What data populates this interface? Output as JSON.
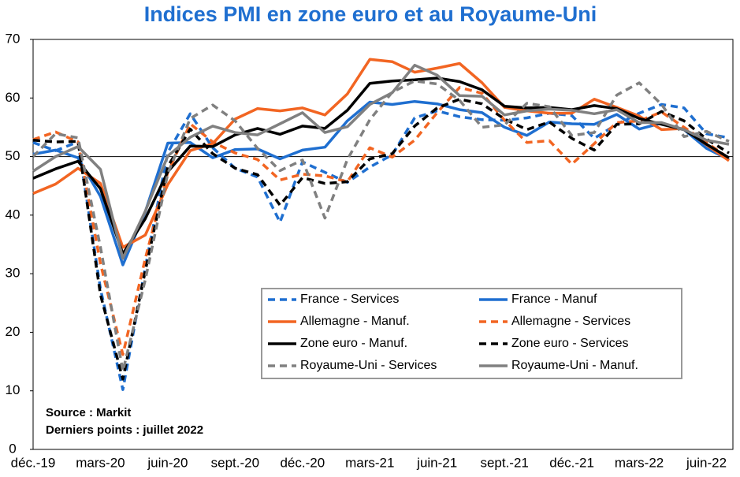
{
  "chart_data": {
    "type": "line",
    "title": "Indices PMI en zone euro et au Royaume-Uni",
    "annotations": [
      "Source : Markit",
      "Derniers points : juillet 2022"
    ],
    "categories": [
      "déc.-19",
      null,
      null,
      "mars-20",
      null,
      null,
      "juin-20",
      null,
      null,
      "sept.-20",
      null,
      null,
      "déc.-20",
      null,
      null,
      "mars-21",
      null,
      null,
      "juin-21",
      null,
      null,
      "sept.-21",
      null,
      null,
      "déc.-21",
      null,
      null,
      "mars-22",
      null,
      null,
      "juin-22",
      null
    ],
    "ylim": [
      0,
      70
    ],
    "yticks": [
      0,
      10,
      20,
      30,
      40,
      50,
      60,
      70
    ],
    "reference_line": 50,
    "series": [
      {
        "name": "France - Services",
        "color": "#1f6fd0",
        "dashed": true,
        "values": [
          52.4,
          51.0,
          52.5,
          27.4,
          10.2,
          31.1,
          50.7,
          57.3,
          51.5,
          48.0,
          46.5,
          38.8,
          49.1,
          47.3,
          45.6,
          48.2,
          50.3,
          56.6,
          57.8,
          56.8,
          56.3,
          56.2,
          56.6,
          57.4,
          57.0,
          53.1,
          55.5,
          57.4,
          58.9,
          58.3,
          53.9,
          53.2
        ]
      },
      {
        "name": "France - Manuf",
        "color": "#1f6fd0",
        "dashed": false,
        "values": [
          50.4,
          51.1,
          49.8,
          43.2,
          31.5,
          40.6,
          52.3,
          52.4,
          49.8,
          51.2,
          51.3,
          49.6,
          51.1,
          51.6,
          56.1,
          59.3,
          58.9,
          59.4,
          59.0,
          58.0,
          57.5,
          55.0,
          53.6,
          55.9,
          55.6,
          55.5,
          57.2,
          54.7,
          55.7,
          54.6,
          51.4,
          49.5
        ]
      },
      {
        "name": "Allemagne - Manuf.",
        "color": "#f26522",
        "dashed": false,
        "values": [
          43.7,
          45.3,
          48.0,
          45.4,
          34.5,
          36.6,
          45.2,
          51.0,
          52.2,
          56.4,
          58.2,
          57.8,
          58.3,
          57.1,
          60.7,
          66.6,
          66.2,
          64.4,
          65.1,
          65.9,
          62.6,
          58.4,
          57.8,
          57.4,
          57.4,
          59.8,
          58.4,
          56.9,
          54.6,
          54.8,
          52.0,
          49.3
        ]
      },
      {
        "name": "Allemagne - Services",
        "color": "#f26522",
        "dashed": true,
        "values": [
          52.9,
          54.2,
          52.5,
          31.7,
          16.2,
          32.6,
          47.3,
          55.6,
          52.5,
          50.6,
          49.5,
          46.0,
          47.0,
          46.7,
          45.7,
          51.5,
          49.9,
          52.8,
          57.5,
          61.8,
          60.8,
          56.2,
          52.4,
          52.7,
          48.7,
          52.2,
          55.8,
          56.1,
          57.6,
          55.0,
          52.4,
          49.7
        ]
      },
      {
        "name": "Zone euro - Manuf.",
        "color": "#000000",
        "dashed": false,
        "values": [
          46.3,
          47.9,
          49.2,
          44.5,
          33.4,
          39.4,
          47.4,
          51.8,
          51.7,
          53.7,
          54.8,
          53.8,
          55.2,
          54.8,
          57.9,
          62.5,
          62.9,
          63.1,
          63.4,
          62.8,
          61.4,
          58.6,
          58.3,
          58.4,
          58.0,
          58.7,
          58.2,
          56.5,
          55.5,
          54.6,
          52.1,
          49.8
        ]
      },
      {
        "name": "Zone euro - Services",
        "color": "#000000",
        "dashed": true,
        "values": [
          52.8,
          52.5,
          52.6,
          26.4,
          12.0,
          30.5,
          48.3,
          54.7,
          50.5,
          48.0,
          46.9,
          41.7,
          46.4,
          45.4,
          45.7,
          49.6,
          50.5,
          55.2,
          58.3,
          59.8,
          59.0,
          56.4,
          54.6,
          55.9,
          53.1,
          51.1,
          55.5,
          55.6,
          57.7,
          56.1,
          53.0,
          50.6
        ]
      },
      {
        "name": "Royaume-Uni - Services",
        "color": "#808080",
        "dashed": true,
        "values": [
          50.0,
          53.9,
          53.2,
          34.5,
          13.4,
          29.0,
          47.1,
          56.5,
          58.8,
          56.1,
          51.4,
          47.6,
          49.4,
          39.5,
          49.5,
          56.3,
          61.0,
          62.9,
          62.4,
          59.6,
          55.0,
          55.4,
          59.1,
          58.5,
          53.6,
          54.1,
          60.5,
          62.6,
          58.9,
          53.4,
          54.3,
          52.6
        ]
      },
      {
        "name": "Royaume-Uni - Manuf.",
        "color": "#808080",
        "dashed": false,
        "values": [
          47.5,
          50.0,
          51.7,
          47.8,
          32.6,
          40.7,
          50.1,
          53.3,
          55.2,
          54.1,
          53.7,
          55.6,
          57.5,
          54.1,
          55.1,
          58.9,
          60.9,
          65.6,
          63.9,
          60.4,
          60.3,
          57.1,
          57.8,
          58.1,
          57.9,
          57.3,
          58.0,
          55.8,
          55.8,
          54.6,
          52.8,
          52.1
        ]
      }
    ]
  }
}
